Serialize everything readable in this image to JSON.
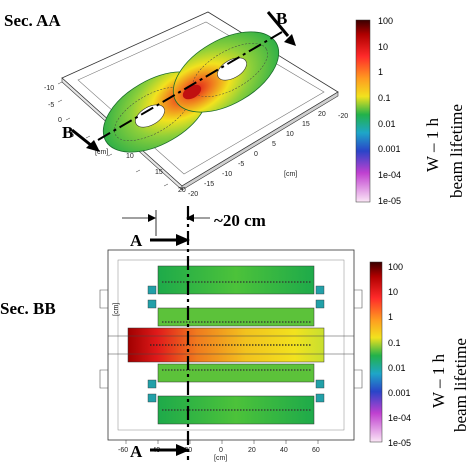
{
  "figure": {
    "top_section": {
      "label": "Sec. AA",
      "cut_label_start": "B",
      "cut_label_end": "B",
      "unit_x": "[cm]",
      "unit_y": "[cm]",
      "ticks_left": [
        "-10",
        "-5",
        "0",
        "5",
        "10",
        "15",
        "20"
      ],
      "ticks_front": [
        "-20",
        "-15",
        "-10",
        "-5",
        "0",
        "5",
        "10",
        "15",
        "20"
      ],
      "ticks_right": [
        "-20"
      ],
      "side_title_line1": "W – 1 h",
      "side_title_line2": "beam lifetime"
    },
    "bottom_section": {
      "label": "Sec. BB",
      "cut_label_top": "A",
      "cut_label_bottom": "A",
      "distance_label": "~20 cm",
      "unit_x": "[cm]",
      "unit_y": "[cm]",
      "ticks_x": [
        "-60",
        "-40",
        "-20",
        "0",
        "20",
        "40",
        "60"
      ],
      "side_title_line1": "W – 1 h",
      "side_title_line2": "beam lifetime"
    },
    "colorbar": {
      "labels": [
        "100",
        "10",
        "1",
        "0.1",
        "0.01",
        "0.001",
        "1e-04",
        "1e-05"
      ]
    },
    "colors": {
      "high": "#7a0000",
      "red": "#e52020",
      "orange": "#f59a1e",
      "yellow": "#f2e21e",
      "green": "#22b24a",
      "cyan": "#1ea6c8",
      "blue": "#2a44c8",
      "magenta": "#c040d0",
      "low": "#f8d8f0"
    }
  }
}
